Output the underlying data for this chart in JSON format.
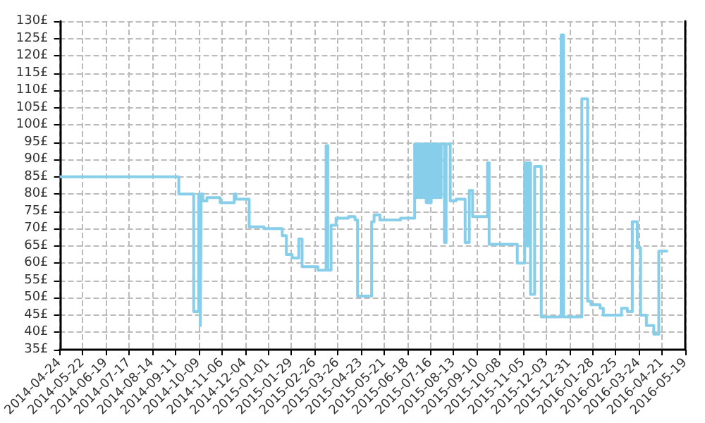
{
  "chart_data": {
    "type": "step",
    "color": "#87ceeb",
    "grid": true,
    "marker": "none",
    "line_style": "solid",
    "x": [
      "2014-04-24",
      "2014-09-15",
      "2014-10-03",
      "2014-10-09",
      "2014-10-11",
      "2014-10-12",
      "2014-10-14",
      "2014-10-19",
      "2014-11-04",
      "2014-11-21",
      "2014-11-23",
      "2014-12-09",
      "2014-12-27",
      "2015-01-18",
      "2015-01-23",
      "2015-01-30",
      "2015-02-07",
      "2015-02-11",
      "2015-03-02",
      "2015-03-12",
      "2015-03-14",
      "2015-03-18",
      "2015-03-24",
      "2015-04-08",
      "2015-04-16",
      "2015-04-19",
      "2015-05-06",
      "2015-05-09",
      "2015-05-16",
      "2015-06-10",
      "2015-06-27",
      "2015-06-29",
      "2015-07-01",
      "2015-07-03",
      "2015-07-05",
      "2015-07-07",
      "2015-07-09",
      "2015-07-11",
      "2015-07-13",
      "2015-07-15",
      "2015-07-17",
      "2015-07-19",
      "2015-07-21",
      "2015-07-23",
      "2015-07-25",
      "2015-07-27",
      "2015-07-29",
      "2015-08-02",
      "2015-08-04",
      "2015-08-09",
      "2015-08-16",
      "2015-08-27",
      "2015-09-01",
      "2015-09-05",
      "2015-09-23",
      "2015-09-25",
      "2015-10-29",
      "2015-11-07",
      "2015-11-10",
      "2015-11-12",
      "2015-11-14",
      "2015-11-19",
      "2015-11-27",
      "2015-12-21",
      "2015-12-24",
      "2016-01-15",
      "2016-01-22",
      "2016-01-26",
      "2016-02-06",
      "2016-02-10",
      "2016-03-03",
      "2016-03-10",
      "2016-03-16",
      "2016-03-22",
      "2016-03-26",
      "2016-04-02",
      "2016-04-11",
      "2016-04-17",
      "2016-04-28"
    ],
    "values": [
      85,
      80,
      46,
      80,
      42,
      80,
      78,
      79,
      77.5,
      80,
      78.5,
      70.5,
      70,
      68,
      62.5,
      61.5,
      67,
      59,
      58,
      94,
      58,
      71,
      73,
      73.5,
      72.5,
      50.5,
      72,
      74,
      72.5,
      73,
      94.5,
      79,
      94.5,
      79,
      94.5,
      79,
      94.5,
      77.5,
      94.5,
      77.5,
      94.5,
      79,
      94.5,
      79,
      94.5,
      79,
      94.5,
      66,
      94.5,
      78,
      78.5,
      66,
      81,
      73.5,
      89,
      65.5,
      60,
      89,
      65,
      89,
      51,
      88,
      44.5,
      126,
      44.5,
      107.5,
      49,
      48,
      47,
      45,
      47,
      46,
      72,
      64.5,
      45,
      42,
      39.5,
      63.5,
      63.5
    ],
    "xlim": [
      "2014-04-24",
      "2016-05-19"
    ],
    "xticks": [
      "2014-04-24",
      "2014-05-22",
      "2014-06-19",
      "2014-07-17",
      "2014-08-14",
      "2014-09-11",
      "2014-10-09",
      "2014-11-06",
      "2014-12-04",
      "2015-01-01",
      "2015-01-29",
      "2015-02-26",
      "2015-03-26",
      "2015-04-23",
      "2015-05-21",
      "2015-06-18",
      "2015-07-16",
      "2015-08-13",
      "2015-09-10",
      "2015-10-08",
      "2015-11-05",
      "2015-12-03",
      "2015-12-31",
      "2016-01-28",
      "2016-02-25",
      "2016-03-24",
      "2016-04-21",
      "2016-05-19"
    ],
    "ylim": [
      35,
      130
    ],
    "yticks": [
      {
        "value": 35,
        "label": "35£"
      },
      {
        "value": 40,
        "label": "40£"
      },
      {
        "value": 45,
        "label": "45£"
      },
      {
        "value": 50,
        "label": "50£"
      },
      {
        "value": 55,
        "label": "55£"
      },
      {
        "value": 60,
        "label": "60£"
      },
      {
        "value": 65,
        "label": "65£"
      },
      {
        "value": 70,
        "label": "70£"
      },
      {
        "value": 75,
        "label": "75£"
      },
      {
        "value": 80,
        "label": "80£"
      },
      {
        "value": 85,
        "label": "85£"
      },
      {
        "value": 90,
        "label": "90£"
      },
      {
        "value": 95,
        "label": "95£"
      },
      {
        "value": 100,
        "label": "100£"
      },
      {
        "value": 105,
        "label": "105£"
      },
      {
        "value": 110,
        "label": "110£"
      },
      {
        "value": 115,
        "label": "115£"
      },
      {
        "value": 120,
        "label": "120£"
      },
      {
        "value": 125,
        "label": "125£"
      },
      {
        "value": 130,
        "label": "130£"
      }
    ]
  }
}
